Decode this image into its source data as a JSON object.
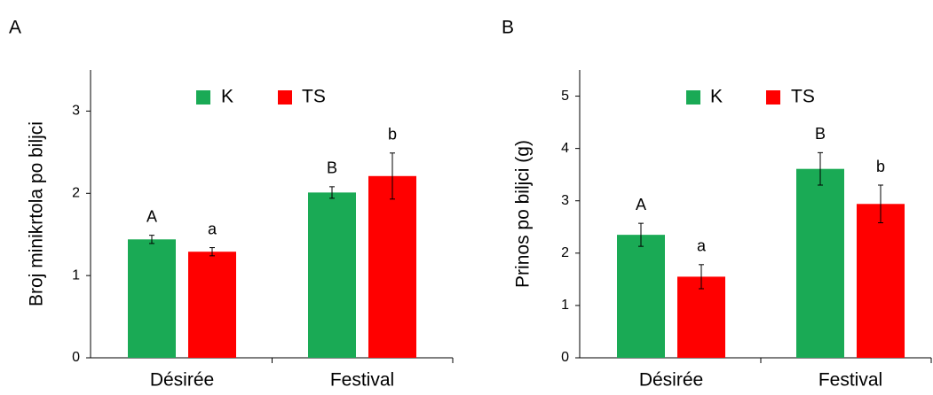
{
  "chart_data": [
    {
      "type": "bar",
      "panel_label": "A",
      "categories": [
        "Désirée",
        "Festival"
      ],
      "ylabel": "Broj minikrtola po biljci",
      "ylim": [
        0,
        3.5
      ],
      "yticks": [
        "0",
        "1",
        "2",
        "3"
      ],
      "legend_placement": "top-center",
      "series": [
        {
          "name": "K",
          "color": "#1aaa55",
          "values": [
            1.44,
            2.01
          ],
          "errors": [
            0.05,
            0.07
          ],
          "letters": [
            "A",
            "B"
          ]
        },
        {
          "name": "TS",
          "color": "#ff0000",
          "values": [
            1.29,
            2.21
          ],
          "errors": [
            0.05,
            0.28
          ],
          "letters": [
            "a",
            "b"
          ]
        }
      ]
    },
    {
      "type": "bar",
      "panel_label": "B",
      "categories": [
        "Désirée",
        "Festival"
      ],
      "ylabel": "Prinos po biljci (g)",
      "ylim": [
        0,
        5.5
      ],
      "yticks": [
        "0",
        "1",
        "2",
        "3",
        "4",
        "5"
      ],
      "legend_placement": "top-center",
      "series": [
        {
          "name": "K",
          "color": "#1aaa55",
          "values": [
            2.35,
            3.61
          ],
          "errors": [
            0.22,
            0.31
          ],
          "letters": [
            "A",
            "B"
          ]
        },
        {
          "name": "TS",
          "color": "#ff0000",
          "values": [
            1.55,
            2.94
          ],
          "errors": [
            0.23,
            0.36
          ],
          "letters": [
            "a",
            "b"
          ]
        }
      ]
    }
  ]
}
